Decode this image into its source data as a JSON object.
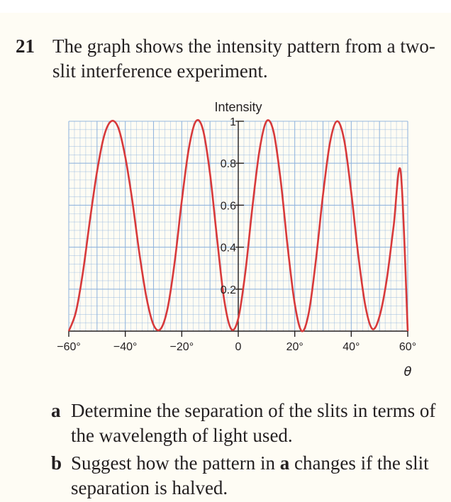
{
  "question": {
    "number": "21",
    "text": "The graph shows the intensity pattern from a two-slit interference experiment."
  },
  "parts": [
    {
      "letter": "a",
      "text": "Determine the separation of the slits in terms of the wavelength of light used."
    },
    {
      "letter": "b",
      "text_before": "Suggest how the pattern in ",
      "text_ref": "a",
      "text_after": " changes if the slit separation is halved."
    }
  ],
  "colors": {
    "curve": "#d7393a",
    "grid": "#8fb4dd",
    "axis": "#231f20",
    "page_background": "#fefcf4"
  },
  "chart_data": {
    "type": "line",
    "title": "",
    "xlabel": "θ",
    "ylabel": "Intensity",
    "xlim": [
      -60,
      60
    ],
    "ylim": [
      0,
      1
    ],
    "x_unit": "degrees",
    "grid": true,
    "x_ticks": [
      -60,
      -40,
      -20,
      0,
      20,
      40,
      60
    ],
    "x_tick_labels": [
      "−60°",
      "−40°",
      "−20°",
      "0",
      "20°",
      "40°",
      "60°"
    ],
    "y_ticks": [
      0.2,
      0.4,
      0.6,
      0.8,
      1
    ],
    "y_tick_labels": [
      "0.2",
      "0.4",
      "0.6",
      "0.8",
      "1"
    ],
    "series": [
      {
        "x": [
          -60,
          -57.5,
          -55,
          -52.5,
          -50,
          -47.5,
          -45,
          -42.5,
          -40,
          -37.5,
          -35,
          -32.5,
          -30,
          -27.5,
          -25,
          -22.5,
          -20,
          -17.5,
          -15,
          -12.5,
          -10,
          -7.5,
          -5,
          -2.5,
          0,
          2.5,
          5,
          7.5,
          10,
          12.5,
          15,
          17.5,
          20,
          22.5,
          25,
          27.5,
          30,
          32.5,
          35,
          37.5,
          40,
          42.5,
          45,
          47.5,
          50,
          52.5,
          55,
          57.5,
          60
        ],
        "y": [
          0.0,
          0.09,
          0.28,
          0.53,
          0.76,
          0.93,
          1.0,
          0.97,
          0.83,
          0.62,
          0.37,
          0.16,
          0.03,
          0.01,
          0.11,
          0.33,
          0.62,
          0.87,
          1.0,
          0.96,
          0.75,
          0.44,
          0.15,
          0.01,
          0.06,
          0.28,
          0.59,
          0.86,
          1.0,
          0.95,
          0.72,
          0.4,
          0.13,
          0.0,
          0.09,
          0.34,
          0.65,
          0.9,
          1.0,
          0.91,
          0.66,
          0.36,
          0.12,
          0.01,
          0.07,
          0.24,
          0.5,
          0.76,
          0.0
        ]
      }
    ]
  }
}
